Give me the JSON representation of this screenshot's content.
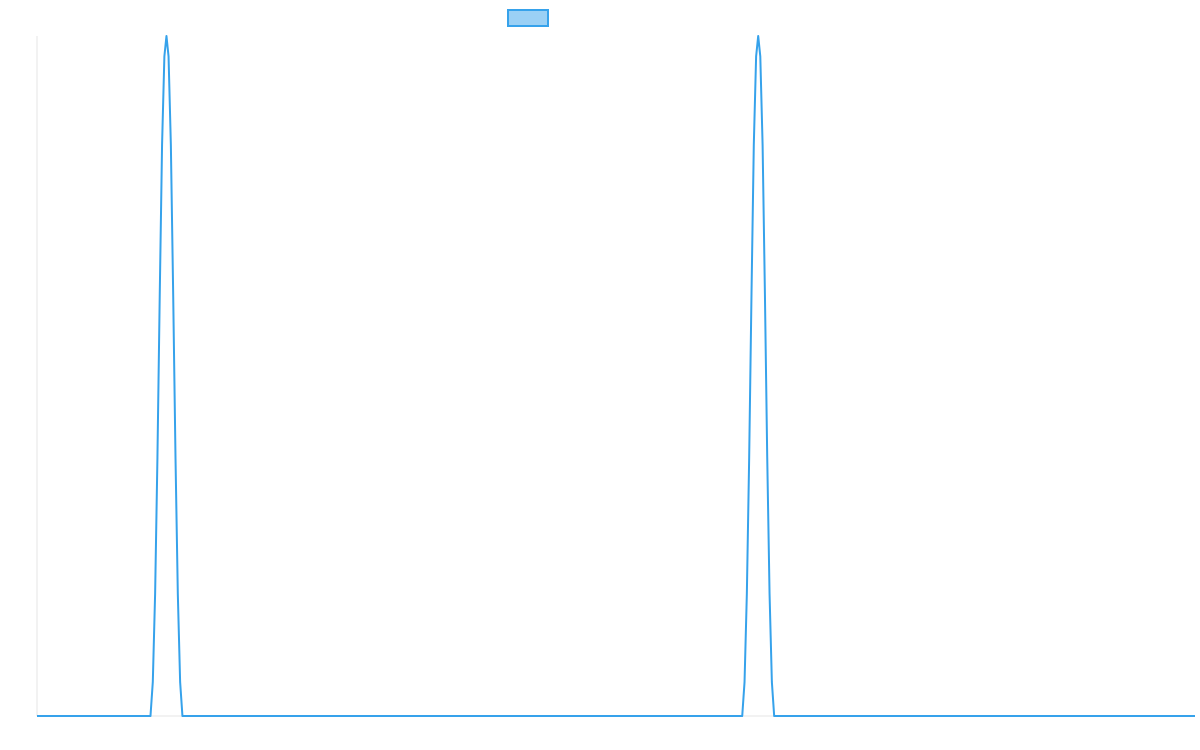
{
  "chart_data": {
    "type": "line",
    "series": [
      {
        "name": "",
        "color": "#36a2eb",
        "fill": "#9ad0f5",
        "points": [
          [
            0,
            0
          ],
          [
            0.98,
            0
          ],
          [
            1.0,
            0.05
          ],
          [
            1.02,
            0.18
          ],
          [
            1.04,
            0.38
          ],
          [
            1.06,
            0.62
          ],
          [
            1.08,
            0.84
          ],
          [
            1.1,
            0.97
          ],
          [
            1.118,
            1.0
          ],
          [
            1.136,
            0.97
          ],
          [
            1.156,
            0.84
          ],
          [
            1.176,
            0.62
          ],
          [
            1.196,
            0.38
          ],
          [
            1.216,
            0.18
          ],
          [
            1.236,
            0.05
          ],
          [
            1.256,
            0
          ],
          [
            6.09,
            0
          ],
          [
            6.11,
            0.05
          ],
          [
            6.13,
            0.18
          ],
          [
            6.15,
            0.38
          ],
          [
            6.17,
            0.62
          ],
          [
            6.19,
            0.84
          ],
          [
            6.21,
            0.97
          ],
          [
            6.228,
            1.0
          ],
          [
            6.246,
            0.97
          ],
          [
            6.266,
            0.84
          ],
          [
            6.286,
            0.62
          ],
          [
            6.306,
            0.38
          ],
          [
            6.326,
            0.18
          ],
          [
            6.346,
            0.05
          ],
          [
            6.366,
            0
          ],
          [
            10.0,
            0
          ]
        ]
      }
    ],
    "xlim": [
      0,
      10
    ],
    "ylim": [
      0,
      1
    ],
    "legend": "top-center",
    "grid": false,
    "axes": {
      "y_axis_line": true,
      "x_axis_line": true,
      "axis_color": "#e6e6e6"
    }
  }
}
